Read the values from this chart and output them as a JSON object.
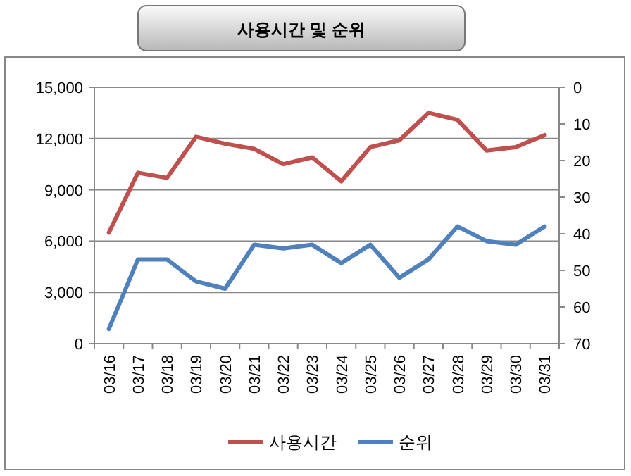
{
  "chart_data": {
    "type": "line",
    "title": "사용시간 및 순위",
    "categories": [
      "03/16",
      "03/17",
      "03/18",
      "03/19",
      "03/20",
      "03/21",
      "03/22",
      "03/23",
      "03/24",
      "03/25",
      "03/26",
      "03/27",
      "03/28",
      "03/29",
      "03/30",
      "03/31"
    ],
    "series": [
      {
        "name": "사용시간",
        "color": "#c0504d",
        "values": [
          6500,
          10000,
          9700,
          12100,
          11700,
          11400,
          10500,
          10900,
          9500,
          11500,
          11900,
          13500,
          13100,
          11300,
          11500,
          12200
        ]
      },
      {
        "name": "순위",
        "color": "#4f81bd",
        "axis": "y2",
        "values": [
          66,
          47,
          47,
          53,
          55,
          43,
          44,
          43,
          48,
          43,
          52,
          47,
          38,
          42,
          43,
          38
        ]
      }
    ],
    "ylim": [
      0,
      15000
    ],
    "yticks": [
      0,
      {
        "value": 3000,
        "label": "3,000"
      },
      {
        "value": 6000,
        "label": "6,000"
      },
      {
        "value": 9000,
        "label": "9,000"
      },
      {
        "value": 12000,
        "label": "12,000"
      },
      {
        "value": 15000,
        "label": "15,000"
      }
    ],
    "y2lim": [
      70,
      0
    ],
    "y2ticks": [
      0,
      10,
      20,
      30,
      40,
      50,
      60,
      70
    ],
    "grid": "y",
    "legend": "bottom",
    "marker": "none",
    "line_style": "solid"
  }
}
